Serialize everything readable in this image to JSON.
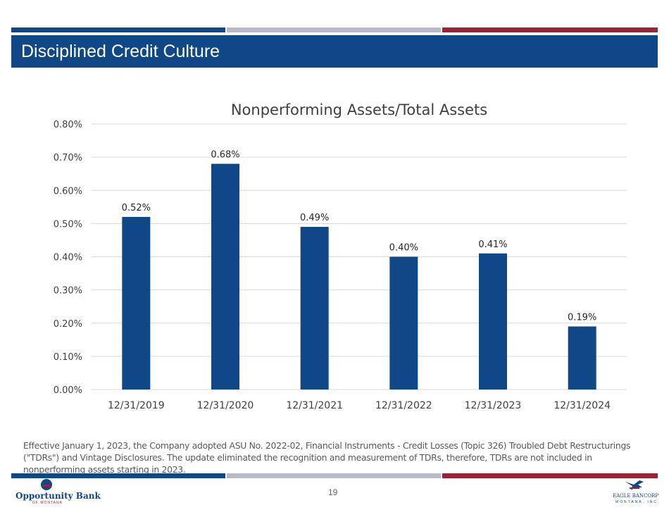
{
  "header": {
    "title": "Disciplined Credit Culture"
  },
  "chart_data": {
    "type": "bar",
    "title": "Nonperforming Assets/Total Assets",
    "categories": [
      "12/31/2019",
      "12/31/2020",
      "12/31/2021",
      "12/31/2022",
      "12/31/2023",
      "12/31/2024"
    ],
    "values": [
      0.52,
      0.68,
      0.49,
      0.4,
      0.41,
      0.19
    ],
    "data_labels": [
      "0.52%",
      "0.68%",
      "0.49%",
      "0.40%",
      "0.41%",
      "0.19%"
    ],
    "ylim": [
      0,
      0.8
    ],
    "yticks": [
      0,
      0.1,
      0.2,
      0.3,
      0.4,
      0.5,
      0.6,
      0.7,
      0.8
    ],
    "ytick_labels": [
      "0.00%",
      "0.10%",
      "0.20%",
      "0.30%",
      "0.40%",
      "0.50%",
      "0.60%",
      "0.70%",
      "0.80%"
    ],
    "xlabel": "",
    "ylabel": "",
    "grid": true,
    "bar_color": "#0f4787"
  },
  "footnote": "Effective January 1, 2023, the Company adopted ASU No. 2022-02, Financial Instruments - Credit Losses (Topic 326) Troubled Debt Restructurings (\"TDRs\") and Vintage Disclosures. The update eliminated the recognition and measurement of TDRs, therefore, TDRs are not included in nonperforming assets starting in 2023.",
  "footer": {
    "page_number": "19",
    "left_logo": {
      "name": "Opportunity Bank",
      "sub": "OF MONTANA"
    },
    "right_logo": {
      "name": "EAGLE BANCORP",
      "sub": "MONTANA, INC."
    }
  },
  "colors": {
    "brand_blue": "#0f4787",
    "brand_red": "#9b2335",
    "brand_gray": "#b7bac9"
  }
}
